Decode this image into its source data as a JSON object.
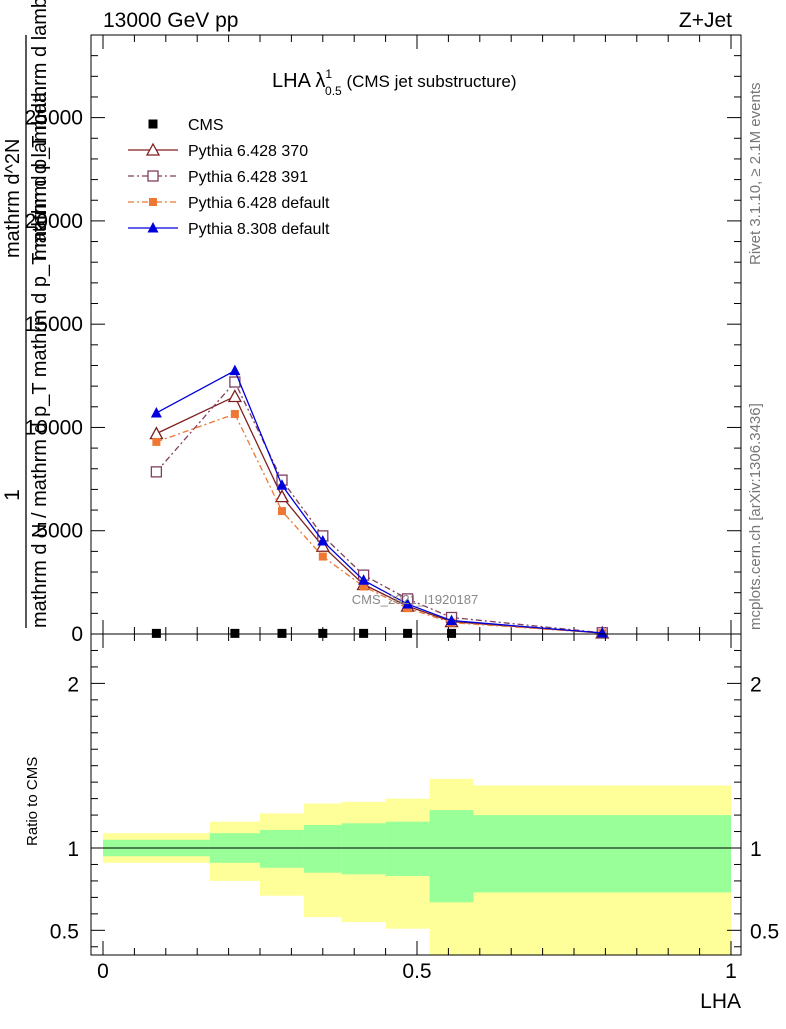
{
  "header": {
    "left": "13000 GeV pp",
    "right": "Z+Jet"
  },
  "side_text": {
    "rivet": "Rivet 3.1.10, ≥ 2.1M events",
    "mcplots": "mcplots.cern.ch [arXiv:1306.3436]"
  },
  "chart_data": [
    {
      "type": "line",
      "title": {
        "main": "LHA λ",
        "sup": "1",
        "sub": "0.5",
        "suffix": " (CMS jet substructure)"
      },
      "watermark": "CMS_2021_I1920187",
      "ylabel": {
        "numerator": "1",
        "denominator": "mathrm d N / mathrm d p_T mathrm d p_T mathrm d lambda",
        "overlay": "mathrm d^2N",
        "overlay2": "mathrm d p_T mathrm d lambda"
      },
      "ylim": [
        0,
        29000
      ],
      "yticks": [
        0,
        5000,
        10000,
        15000,
        20000,
        25000
      ],
      "ytick_labels": [
        "0",
        "5000",
        "10000",
        "15000",
        "20000",
        "25000"
      ],
      "xlim": [
        0,
        1
      ],
      "grid": false,
      "legend_position": "top-left",
      "series": [
        {
          "name": "CMS",
          "color": "#000000",
          "marker": "square",
          "x": [
            0.085,
            0.21,
            0.285,
            0.35,
            0.415,
            0.485,
            0.555,
            0.795
          ],
          "y": [
            30,
            30,
            30,
            30,
            30,
            30,
            30,
            30
          ]
        },
        {
          "name": "Pythia 6.428 370",
          "color": "#7f1f1f",
          "marker": "triangle-open",
          "dash": "",
          "x": [
            0.085,
            0.21,
            0.285,
            0.35,
            0.415,
            0.485,
            0.555,
            0.795
          ],
          "y": [
            9700,
            11500,
            6650,
            4250,
            2400,
            1350,
            600,
            50
          ]
        },
        {
          "name": "Pythia 6.428 391",
          "color": "#7f3f5f",
          "marker": "square-open",
          "dash": "6,3,2,3",
          "x": [
            0.085,
            0.21,
            0.285,
            0.35,
            0.415,
            0.485,
            0.555,
            0.795
          ],
          "y": [
            7850,
            12200,
            7450,
            4750,
            2850,
            1700,
            800,
            60
          ]
        },
        {
          "name": "Pythia 6.428 default",
          "color": "#ee7733",
          "marker": "square-filled",
          "dash": "6,3,2,3",
          "x": [
            0.085,
            0.21,
            0.285,
            0.35,
            0.415,
            0.485,
            0.555,
            0.795
          ],
          "y": [
            9300,
            10650,
            5950,
            3750,
            2300,
            1250,
            550,
            40
          ]
        },
        {
          "name": "Pythia 8.308 default",
          "color": "#0000dd",
          "marker": "triangle-filled",
          "dash": "",
          "x": [
            0.085,
            0.21,
            0.285,
            0.35,
            0.415,
            0.485,
            0.555,
            0.795
          ],
          "y": [
            10700,
            12750,
            7200,
            4500,
            2600,
            1450,
            650,
            50
          ]
        }
      ]
    },
    {
      "type": "area",
      "ylabel": "Ratio to CMS",
      "xlabel": "LHA",
      "xlim": [
        0,
        1
      ],
      "ylim": [
        0.35,
        2.3
      ],
      "xticks": [
        0,
        0.5,
        1
      ],
      "xtick_labels": [
        "0",
        "0.5",
        "1"
      ],
      "yticks": [
        0.5,
        1,
        2
      ],
      "ytick_labels": [
        "0.5",
        "1",
        "2"
      ],
      "reference_line": 1,
      "bins": [
        {
          "x0": 0.0,
          "x1": 0.17,
          "in_lo": 0.95,
          "in_hi": 1.05,
          "out_lo": 0.91,
          "out_hi": 1.09
        },
        {
          "x0": 0.17,
          "x1": 0.25,
          "in_lo": 0.91,
          "in_hi": 1.09,
          "out_lo": 0.8,
          "out_hi": 1.16
        },
        {
          "x0": 0.25,
          "x1": 0.32,
          "in_lo": 0.88,
          "in_hi": 1.11,
          "out_lo": 0.71,
          "out_hi": 1.21
        },
        {
          "x0": 0.32,
          "x1": 0.38,
          "in_lo": 0.85,
          "in_hi": 1.14,
          "out_lo": 0.58,
          "out_hi": 1.27
        },
        {
          "x0": 0.38,
          "x1": 0.45,
          "in_lo": 0.84,
          "in_hi": 1.15,
          "out_lo": 0.55,
          "out_hi": 1.28
        },
        {
          "x0": 0.45,
          "x1": 0.52,
          "in_lo": 0.83,
          "in_hi": 1.16,
          "out_lo": 0.51,
          "out_hi": 1.3
        },
        {
          "x0": 0.52,
          "x1": 0.59,
          "in_lo": 0.67,
          "in_hi": 1.23,
          "out_lo": 0.35,
          "out_hi": 1.42
        },
        {
          "x0": 0.59,
          "x1": 1.0,
          "in_lo": 0.73,
          "in_hi": 1.2,
          "out_lo": 0.35,
          "out_hi": 1.38
        }
      ],
      "colors": {
        "inner": "#99ff99",
        "outer": "#ffff99"
      }
    }
  ]
}
